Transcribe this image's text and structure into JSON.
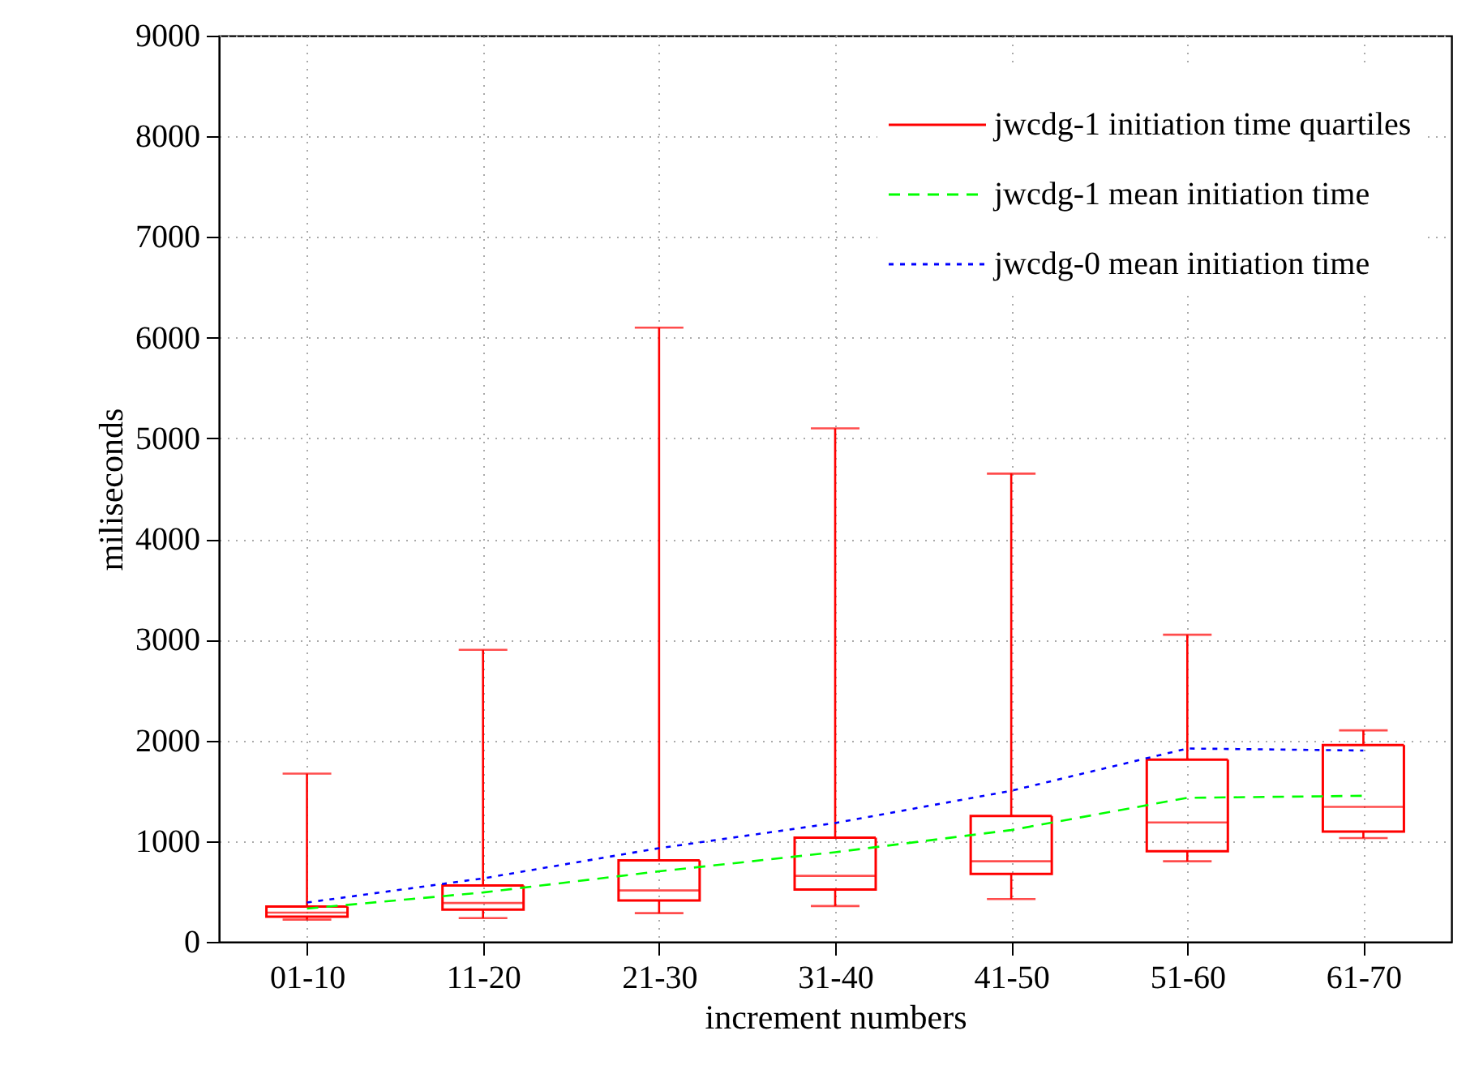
{
  "chart_data": {
    "type": "box",
    "xlabel": "increment numbers",
    "ylabel": "miliseconds",
    "categories": [
      "01-10",
      "11-20",
      "21-30",
      "31-40",
      "41-50",
      "51-60",
      "61-70"
    ],
    "ylim": [
      0,
      9000
    ],
    "yticks": [
      0,
      1000,
      2000,
      3000,
      4000,
      5000,
      6000,
      7000,
      8000,
      9000
    ],
    "grid": true,
    "legend": "top right",
    "series": [
      {
        "name": "jwcdg-1 initiation time quartiles",
        "color": "#ff0000",
        "type": "box",
        "boxes": [
          {
            "low": 220,
            "q1": 250,
            "median": 290,
            "q3": 350,
            "high": 1670
          },
          {
            "low": 235,
            "q1": 320,
            "median": 385,
            "q3": 560,
            "high": 2900
          },
          {
            "low": 285,
            "q1": 410,
            "median": 510,
            "q3": 810,
            "high": 6100
          },
          {
            "low": 355,
            "q1": 520,
            "median": 655,
            "q3": 1035,
            "high": 5100
          },
          {
            "low": 425,
            "q1": 675,
            "median": 800,
            "q3": 1250,
            "high": 4650
          },
          {
            "low": 800,
            "q1": 900,
            "median": 1185,
            "q3": 1810,
            "high": 3050
          },
          {
            "low": 1030,
            "q1": 1095,
            "median": 1340,
            "q3": 1955,
            "high": 2100
          }
        ]
      },
      {
        "name": "jwcdg-1 mean initiation time",
        "color": "#00ff00",
        "type": "line",
        "line_style": "dashed",
        "values": [
          330,
          490,
          700,
          890,
          1110,
          1430,
          1450
        ]
      },
      {
        "name": "jwcdg-0 mean initiation time",
        "color": "#0000ff",
        "type": "line",
        "line_style": "dotted",
        "values": [
          390,
          630,
          930,
          1180,
          1500,
          1920,
          1900
        ]
      }
    ]
  }
}
